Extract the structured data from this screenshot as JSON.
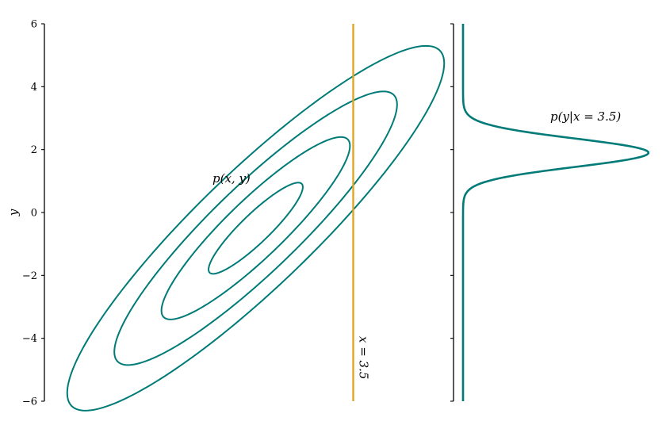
{
  "chart_data": [
    {
      "panel": "joint",
      "type": "contour",
      "ylabel": "y",
      "ylim": [
        -6,
        6
      ],
      "yticks": [
        6,
        4,
        2,
        0,
        -2,
        -4,
        -6
      ],
      "ytick_labels": [
        "6",
        "4",
        "2",
        "0",
        "−2",
        "−4",
        "−6"
      ],
      "annotation": "p(x, y)",
      "center": [
        0.5,
        -0.5
      ],
      "contours": [
        {
          "level": 1,
          "semi_major": 2.0,
          "semi_minor": 0.45,
          "angle_deg": 45
        },
        {
          "level": 2,
          "semi_major": 4.0,
          "semi_minor": 0.9,
          "angle_deg": 45
        },
        {
          "level": 3,
          "semi_major": 6.0,
          "semi_minor": 1.35,
          "angle_deg": 45
        },
        {
          "level": 4,
          "semi_major": 8.0,
          "semi_minor": 1.8,
          "angle_deg": 45
        }
      ],
      "xlim": [
        -6,
        6
      ],
      "vertical_line": {
        "x": 3.5,
        "label": "x = 3.5"
      }
    },
    {
      "panel": "conditional",
      "type": "line",
      "annotation": "p(y|x = 3.5)",
      "ylim": [
        -6,
        6
      ],
      "yticks": [
        6,
        4,
        2,
        0,
        -2,
        -4,
        -6
      ],
      "distribution": {
        "family": "normal",
        "mean": 1.9,
        "std": 0.45,
        "peak": 1.0
      }
    }
  ],
  "colors": {
    "contour": "#007b78",
    "cut_line": "#e0a526",
    "axis": "#000000"
  }
}
